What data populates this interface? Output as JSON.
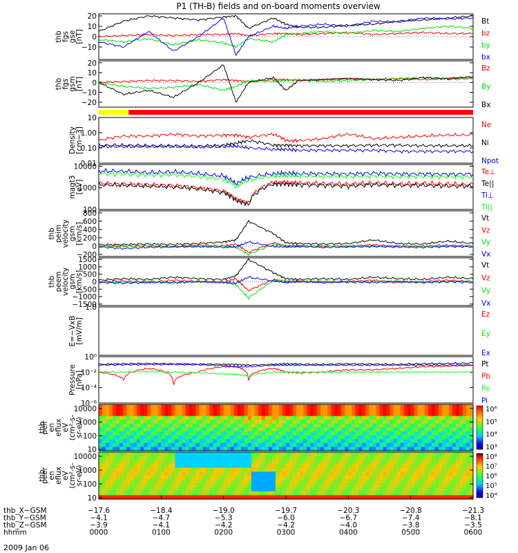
{
  "figure": {
    "title": "P1 (TH-B) fields and on-board moments overview",
    "date": "2009 Jan 06"
  },
  "colors": {
    "black": "#000000",
    "red": "#ff0000",
    "green": "#00dd00",
    "blue": "#0000ff",
    "lime": "#11ff11",
    "yellow": "#ffff00"
  },
  "status_bar": {
    "segments": [
      {
        "from": 0.0,
        "to": 0.08,
        "color": "#ffff00"
      },
      {
        "from": 0.08,
        "to": 1.0,
        "color": "#ff0000"
      }
    ]
  },
  "chart_data": [
    {
      "type": "line",
      "id": "fgs-gse",
      "ylabel": [
        "thb",
        "fgs",
        "gse",
        "[nT]"
      ],
      "yscale": "linear",
      "ylim": [
        -22,
        22
      ],
      "ticks": [
        {
          "v": 20,
          "t": "20"
        },
        {
          "v": 10,
          "t": "10"
        },
        {
          "v": 0,
          "t": "0"
        },
        {
          "v": -10,
          "t": "−10"
        }
      ],
      "x": [
        0.0,
        0.4,
        0.8,
        1.2,
        1.6,
        2.0,
        2.2,
        2.4,
        2.8,
        3.0,
        3.2,
        3.6,
        4.0,
        4.4,
        4.8,
        5.2,
        5.6,
        6.0
      ],
      "series": [
        {
          "name": "Bt",
          "color": "#000000",
          "values": [
            5,
            15,
            20,
            18,
            16,
            19,
            20,
            8,
            18,
            12,
            9,
            9,
            11,
            12,
            15,
            16,
            18,
            20
          ]
        },
        {
          "name": "bz",
          "color": "#ff0000",
          "values": [
            0,
            1,
            2,
            1,
            2,
            2,
            3,
            1,
            3,
            3,
            2,
            3,
            4,
            2,
            3,
            4,
            3,
            3
          ]
        },
        {
          "name": "by",
          "color": "#00dd00",
          "values": [
            -3,
            -5,
            -2,
            -8,
            -3,
            -6,
            -10,
            -2,
            -5,
            2,
            3,
            5,
            3,
            6,
            5,
            8,
            10,
            8
          ]
        },
        {
          "name": "bx",
          "color": "#0000ff",
          "values": [
            -5,
            -10,
            5,
            -14,
            0,
            18,
            -18,
            0,
            10,
            8,
            10,
            12,
            10,
            15,
            14,
            18,
            17,
            18
          ]
        }
      ]
    },
    {
      "type": "line",
      "id": "fgs-gsm",
      "ylabel": [
        "thb",
        "fgs",
        "gsm",
        "[nT]"
      ],
      "yscale": "linear",
      "ylim": [
        -25,
        22
      ],
      "ticks": [
        {
          "v": 20,
          "t": "20"
        },
        {
          "v": 10,
          "t": "10"
        },
        {
          "v": 0,
          "t": "0"
        },
        {
          "v": -10,
          "t": "−10"
        },
        {
          "v": -20,
          "t": "−20"
        }
      ],
      "x": [
        0.0,
        0.4,
        0.8,
        1.2,
        1.6,
        2.0,
        2.2,
        2.4,
        2.8,
        3.0,
        3.2,
        3.6,
        4.0,
        4.4,
        4.8,
        5.2,
        5.6,
        6.0
      ],
      "series": [
        {
          "name": "Bz",
          "color": "#ff0000",
          "values": [
            0,
            1,
            2,
            2,
            1,
            3,
            2,
            1,
            3,
            3,
            2,
            3,
            4,
            3,
            4,
            3,
            4,
            5
          ]
        },
        {
          "name": "By",
          "color": "#00dd00",
          "values": [
            0,
            -4,
            -6,
            -5,
            -2,
            -8,
            -4,
            2,
            1,
            2,
            3,
            1,
            2,
            3,
            4,
            5,
            3,
            4
          ]
        },
        {
          "name": "Bx",
          "color": "#000000",
          "values": [
            0,
            -12,
            -8,
            -15,
            0,
            18,
            -20,
            0,
            5,
            -8,
            2,
            3,
            4,
            3,
            2,
            5,
            4,
            6
          ]
        }
      ]
    },
    {
      "type": "line",
      "id": "density",
      "ylabel": [
        "Density",
        "[cm−3]"
      ],
      "yscale": "log",
      "ylim": [
        0.01,
        10
      ],
      "ticks": [
        {
          "v": 10,
          "t": "10"
        },
        {
          "v": 1,
          "t": "1.00"
        },
        {
          "v": 0.1,
          "t": "0.10"
        },
        {
          "v": 0.01,
          "t": "0.01"
        }
      ],
      "x": [
        0.0,
        0.4,
        0.8,
        1.2,
        1.6,
        2.0,
        2.2,
        2.4,
        2.8,
        3.0,
        3.2,
        3.6,
        4.0,
        4.4,
        4.8,
        5.2,
        5.6,
        6.0
      ],
      "series": [
        {
          "name": "Ne",
          "color": "#ff0000",
          "values": [
            0.3,
            0.6,
            0.6,
            0.8,
            0.6,
            0.7,
            0.7,
            0.5,
            0.8,
            0.3,
            0.3,
            0.4,
            0.8,
            0.4,
            0.5,
            0.6,
            0.7,
            0.7
          ]
        },
        {
          "name": "Ni",
          "color": "#000000",
          "values": [
            0.15,
            0.15,
            0.14,
            0.14,
            0.13,
            0.15,
            0.2,
            0.3,
            0.15,
            0.15,
            0.14,
            0.14,
            0.14,
            0.15,
            0.15,
            0.14,
            0.14,
            0.14
          ]
        },
        {
          "name": "Npot",
          "color": "#0000ff",
          "values": [
            0.12,
            0.12,
            0.12,
            0.12,
            0.11,
            0.12,
            0.13,
            0.1,
            0.08,
            0.08,
            0.07,
            0.07,
            0.07,
            0.07,
            0.06,
            0.06,
            0.06,
            0.06
          ]
        }
      ]
    },
    {
      "type": "line",
      "id": "temperature",
      "ylabel": [
        "magt3",
        "[eV]"
      ],
      "yscale": "log",
      "ylim": [
        100,
        12000
      ],
      "ticks": [
        {
          "v": 10000,
          "t": "10000"
        },
        {
          "v": 1000,
          "t": "1000"
        },
        {
          "v": 100,
          "t": "100"
        }
      ],
      "x": [
        0.0,
        0.4,
        0.8,
        1.2,
        1.6,
        2.0,
        2.2,
        2.4,
        2.8,
        3.0,
        3.2,
        3.6,
        4.0,
        4.4,
        4.8,
        5.2,
        5.6,
        6.0
      ],
      "series": [
        {
          "name": "Te⊥",
          "color": "#ff0000",
          "values": [
            1600,
            1500,
            1400,
            1300,
            1000,
            700,
            300,
            200,
            1800,
            1800,
            1700,
            1600,
            1500,
            1700,
            1500,
            1600,
            1500,
            1400
          ]
        },
        {
          "name": "Te||",
          "color": "#000000",
          "values": [
            1400,
            1300,
            1200,
            1100,
            900,
            600,
            250,
            170,
            1500,
            1500,
            1400,
            1300,
            1200,
            1400,
            1300,
            1300,
            1200,
            1200
          ]
        },
        {
          "name": "Ti⊥",
          "color": "#0000ff",
          "values": [
            6000,
            5800,
            5000,
            5500,
            4500,
            3500,
            1500,
            3000,
            4500,
            4800,
            4500,
            4500,
            4300,
            4800,
            4300,
            4400,
            4200,
            4400
          ]
        },
        {
          "name": "Ti||",
          "color": "#11ff11",
          "values": [
            4500,
            4300,
            3800,
            4000,
            3300,
            2500,
            1100,
            2200,
            3500,
            3700,
            3500,
            3500,
            3300,
            3600,
            3300,
            3400,
            3200,
            3300
          ]
        }
      ]
    },
    {
      "type": "line",
      "id": "peim-velocity",
      "ylabel": [
        "thb",
        "peim",
        "velocity",
        "gsm",
        "[km/s]"
      ],
      "yscale": "linear",
      "ylim": [
        -250,
        850
      ],
      "ticks": [
        {
          "v": 800,
          "t": "800"
        },
        {
          "v": 600,
          "t": "600"
        },
        {
          "v": 400,
          "t": "400"
        },
        {
          "v": 200,
          "t": "200"
        },
        {
          "v": 0,
          "t": "0"
        },
        {
          "v": -200,
          "t": "−200"
        }
      ],
      "x": [
        0.0,
        0.4,
        0.8,
        1.2,
        1.6,
        2.0,
        2.2,
        2.4,
        2.8,
        3.0,
        3.2,
        3.6,
        4.0,
        4.4,
        4.8,
        5.2,
        5.6,
        6.0
      ],
      "series": [
        {
          "name": "Vt",
          "color": "#000000",
          "values": [
            30,
            40,
            50,
            40,
            60,
            100,
            150,
            600,
            300,
            80,
            60,
            50,
            60,
            150,
            60,
            50,
            120,
            60
          ]
        },
        {
          "name": "Vz",
          "color": "#ff0000",
          "values": [
            0,
            10,
            0,
            -10,
            20,
            0,
            50,
            -150,
            80,
            0,
            10,
            -10,
            0,
            30,
            -10,
            0,
            20,
            0
          ]
        },
        {
          "name": "Vy",
          "color": "#00dd00",
          "values": [
            0,
            -10,
            10,
            0,
            -20,
            10,
            -30,
            -200,
            40,
            10,
            0,
            10,
            -10,
            0,
            10,
            -10,
            0,
            10
          ]
        },
        {
          "name": "Vx",
          "color": "#0000ff",
          "values": [
            -20,
            -60,
            -30,
            -20,
            -10,
            -30,
            -20,
            100,
            -10,
            -20,
            -10,
            -30,
            -20,
            -10,
            -20,
            -30,
            -10,
            -20
          ]
        }
      ]
    },
    {
      "type": "line",
      "id": "peem-velocity",
      "ylabel": [
        "thb",
        "peem",
        "velocity",
        "gsm",
        "[km/s]"
      ],
      "yscale": "linear",
      "ylim": [
        -1600,
        1600
      ],
      "ticks": [
        {
          "v": 1500,
          "t": "1500"
        },
        {
          "v": 1000,
          "t": "1000"
        },
        {
          "v": 500,
          "t": "500"
        },
        {
          "v": 0,
          "t": "0"
        },
        {
          "v": -500,
          "t": "−500"
        },
        {
          "v": -1000,
          "t": "−1000"
        },
        {
          "v": -1500,
          "t": "−1500"
        }
      ],
      "x": [
        0.0,
        0.4,
        0.8,
        1.2,
        1.6,
        2.0,
        2.2,
        2.4,
        2.8,
        3.0,
        3.2,
        3.6,
        4.0,
        4.4,
        4.8,
        5.2,
        5.6,
        6.0
      ],
      "series": [
        {
          "name": "Vt",
          "color": "#000000",
          "values": [
            100,
            200,
            150,
            300,
            200,
            150,
            400,
            1500,
            600,
            200,
            150,
            200,
            150,
            300,
            200,
            150,
            300,
            200
          ]
        },
        {
          "name": "Vz",
          "color": "#ff0000",
          "values": [
            0,
            50,
            -50,
            100,
            0,
            -50,
            200,
            -600,
            150,
            0,
            50,
            -50,
            0,
            100,
            -50,
            0,
            100,
            0
          ]
        },
        {
          "name": "Vy",
          "color": "#00dd00",
          "values": [
            0,
            -50,
            50,
            -100,
            50,
            0,
            -200,
            -1100,
            100,
            50,
            0,
            50,
            -50,
            0,
            50,
            -50,
            0,
            50
          ]
        },
        {
          "name": "Vx",
          "color": "#0000ff",
          "values": [
            -50,
            -100,
            -50,
            -50,
            0,
            -50,
            -100,
            300,
            50,
            -50,
            0,
            -50,
            0,
            -50,
            0,
            -50,
            0,
            -50
          ]
        }
      ]
    },
    {
      "type": "line",
      "id": "e-field",
      "ylabel": [
        "E=−VxB",
        "[mV/m]"
      ],
      "yscale": "linear",
      "ylim": [
        -1,
        1
      ],
      "ticks": [
        {
          "v": 1,
          "t": "1.0"
        }
      ],
      "x": [],
      "series": [
        {
          "name": "Ez",
          "color": "#ff0000",
          "values": []
        },
        {
          "name": "Ey",
          "color": "#00dd00",
          "values": []
        },
        {
          "name": "Ex",
          "color": "#0000ff",
          "values": []
        }
      ]
    },
    {
      "type": "line",
      "id": "pressure",
      "ylabel": [
        "Pressure",
        "[nPa]"
      ],
      "yscale": "log",
      "ylim": [
        1e-06,
        1
      ],
      "ticks": [
        {
          "v": 1,
          "t": "10⁰"
        },
        {
          "v": 0.01,
          "t": "10⁻²"
        },
        {
          "v": 0.0001,
          "t": "10⁻⁴"
        },
        {
          "v": 1e-06,
          "t": "10⁻⁶"
        }
      ],
      "x": [
        0.0,
        0.4,
        0.8,
        1.2,
        1.6,
        2.0,
        2.2,
        2.4,
        2.8,
        3.0,
        3.2,
        3.6,
        4.0,
        4.4,
        4.8,
        5.2,
        5.6,
        6.0
      ],
      "series": [
        {
          "name": "Pt",
          "color": "#000000",
          "values": [
            0.1,
            0.12,
            0.13,
            0.12,
            0.11,
            0.1,
            0.1,
            0.08,
            0.1,
            0.12,
            0.11,
            0.1,
            0.12,
            0.11,
            0.1,
            0.12,
            0.13,
            0.15
          ]
        },
        {
          "name": "Pb",
          "color": "#ff0000",
          "values": [
            0.01,
            0.001,
            0.03,
            0.0003,
            0.01,
            0.05,
            0.05,
            0.001,
            0.03,
            0.01,
            0.008,
            0.01,
            0.02,
            0.02,
            0.03,
            0.05,
            0.06,
            0.08
          ]
        },
        {
          "name": "Pe",
          "color": "#11ff11",
          "values": [
            0.01,
            0.01,
            0.012,
            0.01,
            0.008,
            0.006,
            0.005,
            0.003,
            0.01,
            0.01,
            0.01,
            0.01,
            0.01,
            0.01,
            0.01,
            0.01,
            0.01,
            0.01
          ]
        },
        {
          "name": "Pi",
          "color": "#0000ff",
          "values": [
            0.08,
            0.09,
            0.1,
            0.1,
            0.09,
            0.07,
            0.05,
            0.05,
            0.08,
            0.08,
            0.08,
            0.08,
            0.08,
            0.08,
            0.08,
            0.08,
            0.08,
            0.08
          ]
        }
      ]
    },
    {
      "type": "heatmap",
      "id": "peir-spectrogram",
      "ylabel": [
        "thb",
        "peir",
        "en",
        "eflux",
        "eV",
        "(cm²-s-",
        "sr-eV)"
      ],
      "yscale": "log",
      "ylim": [
        8,
        20000
      ],
      "ticks": [
        {
          "v": 10000,
          "t": "10000"
        },
        {
          "v": 1000,
          "t": "1000"
        },
        {
          "v": 100,
          "t": "100"
        },
        {
          "v": 10,
          "t": "10"
        }
      ],
      "colorbar": {
        "ticks": [
          "10⁶",
          "10⁵",
          "10⁴",
          "10³"
        ]
      }
    },
    {
      "type": "heatmap",
      "id": "peer-spectrogram",
      "ylabel": [
        "thb",
        "peer",
        "en",
        "eflux",
        "eV",
        "(cm²-s-",
        "sr-eV)"
      ],
      "yscale": "log",
      "ylim": [
        8,
        20000
      ],
      "ticks": [
        {
          "v": 10000,
          "t": "10000"
        },
        {
          "v": 1000,
          "t": "1000"
        },
        {
          "v": 100,
          "t": "100"
        },
        {
          "v": 10,
          "t": "10"
        }
      ],
      "colorbar": {
        "ticks": [
          "10⁸",
          "10⁷",
          "10⁶",
          "10⁵",
          "10⁴"
        ]
      }
    }
  ],
  "x_axis": {
    "rows": [
      {
        "label": "thb_X−GSM",
        "values": [
          "−17.6",
          "−18.4",
          "−19.0",
          "−19.7",
          "−20.3",
          "−20.8",
          "−21.3"
        ]
      },
      {
        "label": "thb_Y−GSM",
        "values": [
          "−4.1",
          "−4.7",
          "−5.3",
          "−6.0",
          "−6.7",
          "−7.4",
          "−8.1"
        ]
      },
      {
        "label": "thb_Z−GSM",
        "values": [
          "−3.9",
          "−4.1",
          "−4.2",
          "−4.2",
          "−4.0",
          "−3.8",
          "−3.5"
        ]
      },
      {
        "label": "hhmm",
        "values": [
          "0000",
          "0100",
          "0200",
          "0300",
          "0400",
          "0500",
          "0600"
        ]
      }
    ]
  }
}
